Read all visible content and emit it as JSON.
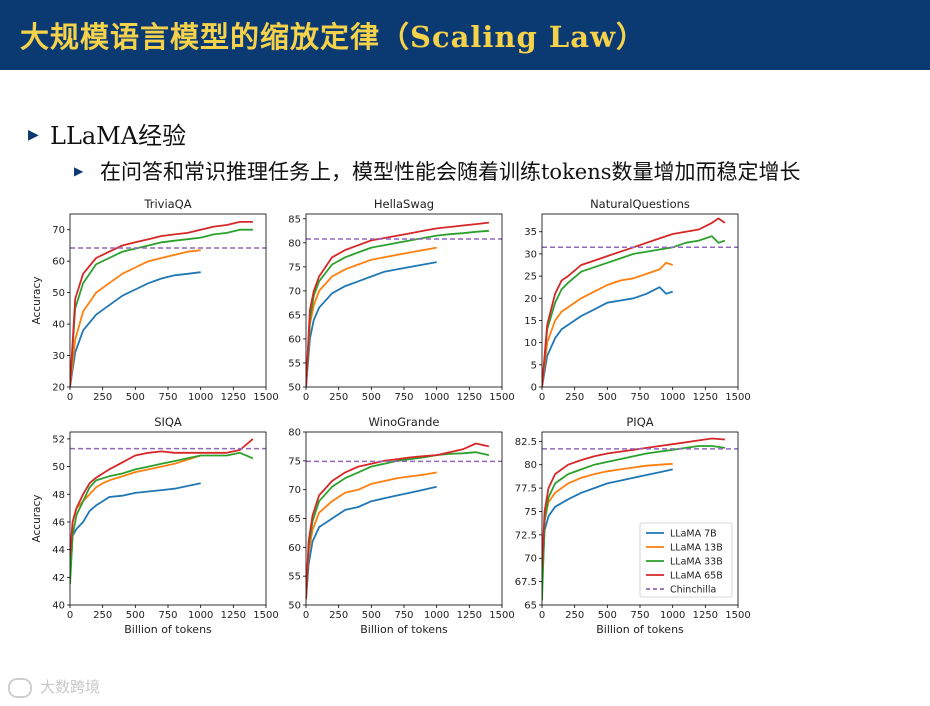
{
  "header": {
    "title": "大规模语言模型的缩放定律（Scaling Law）",
    "colors": {
      "background": "#0b3a72",
      "title": "#f5d24a"
    }
  },
  "bullets": {
    "level1": "LLaMA经验",
    "level2": "在问答和常识推理任务上，模型性能会随着训练tokens数量增加而稳定增长"
  },
  "watermark": "大数跨境",
  "chart_data": [
    {
      "type": "line",
      "title": "TriviaQA",
      "ylabel": "Accuracy",
      "xlabel": "",
      "xlim": [
        0,
        1500
      ],
      "ylim": [
        20,
        75
      ],
      "xticks": [
        0,
        250,
        500,
        750,
        1000,
        1250,
        1500
      ],
      "yticks": [
        20,
        30,
        40,
        50,
        60,
        70
      ],
      "hline": {
        "name": "Chinchilla",
        "y": 64.2
      },
      "series": [
        {
          "name": "LLaMA 7B",
          "x": [
            0,
            40,
            100,
            200,
            300,
            400,
            500,
            600,
            700,
            800,
            900,
            1000
          ],
          "y": [
            20,
            31,
            38,
            43,
            46,
            49,
            51,
            53,
            54.5,
            55.5,
            56,
            56.5
          ]
        },
        {
          "name": "LLaMA 13B",
          "x": [
            0,
            40,
            100,
            200,
            300,
            400,
            500,
            600,
            700,
            800,
            900,
            1000
          ],
          "y": [
            20,
            35,
            44,
            50,
            53,
            56,
            58,
            60,
            61,
            62,
            63,
            63.5
          ]
        },
        {
          "name": "LLaMA 33B",
          "x": [
            0,
            40,
            100,
            200,
            300,
            400,
            500,
            600,
            700,
            800,
            900,
            1000,
            1100,
            1200,
            1300,
            1400
          ],
          "y": [
            20,
            45,
            53,
            59,
            61,
            63,
            64,
            65,
            66,
            66.5,
            67,
            67.5,
            68.5,
            69,
            70,
            70
          ]
        },
        {
          "name": "LLaMA 65B",
          "x": [
            0,
            40,
            100,
            200,
            300,
            400,
            500,
            600,
            700,
            800,
            900,
            1000,
            1100,
            1200,
            1300,
            1400
          ],
          "y": [
            20,
            48,
            56,
            61,
            63,
            65,
            66,
            67,
            68,
            68.5,
            69,
            70,
            71,
            71.5,
            72.5,
            72.5
          ]
        }
      ]
    },
    {
      "type": "line",
      "title": "HellaSwag",
      "ylabel": "",
      "xlabel": "",
      "xlim": [
        0,
        1500
      ],
      "ylim": [
        50,
        86
      ],
      "xticks": [
        0,
        250,
        500,
        750,
        1000,
        1250,
        1500
      ],
      "yticks": [
        50,
        55,
        60,
        65,
        70,
        75,
        80,
        85
      ],
      "hline": {
        "name": "Chinchilla",
        "y": 80.8
      },
      "series": [
        {
          "name": "LLaMA 7B",
          "x": [
            0,
            30,
            60,
            100,
            200,
            300,
            400,
            500,
            600,
            700,
            800,
            900,
            1000
          ],
          "y": [
            50,
            60,
            64,
            66.5,
            69.5,
            71,
            72,
            73,
            74,
            74.5,
            75,
            75.5,
            76
          ]
        },
        {
          "name": "LLaMA 13B",
          "x": [
            0,
            30,
            60,
            100,
            200,
            300,
            400,
            500,
            600,
            700,
            800,
            900,
            1000
          ],
          "y": [
            50,
            63,
            67,
            70,
            73,
            74.5,
            75.5,
            76.5,
            77,
            77.5,
            78,
            78.5,
            79
          ]
        },
        {
          "name": "LLaMA 33B",
          "x": [
            0,
            30,
            60,
            100,
            200,
            300,
            400,
            500,
            600,
            700,
            800,
            900,
            1000,
            1100,
            1200,
            1300,
            1400
          ],
          "y": [
            50,
            64,
            69,
            72,
            75.5,
            77,
            78,
            79,
            79.5,
            80,
            80.5,
            81,
            81.5,
            81.8,
            82,
            82.3,
            82.5
          ]
        },
        {
          "name": "LLaMA 65B",
          "x": [
            0,
            30,
            60,
            100,
            200,
            300,
            400,
            500,
            600,
            700,
            800,
            900,
            1000,
            1100,
            1200,
            1300,
            1400
          ],
          "y": [
            50,
            66,
            70,
            73,
            77,
            78.5,
            79.5,
            80.5,
            81,
            81.5,
            82,
            82.5,
            83,
            83.3,
            83.6,
            83.9,
            84.2
          ]
        }
      ]
    },
    {
      "type": "line",
      "title": "NaturalQuestions",
      "ylabel": "",
      "xlabel": "",
      "xlim": [
        0,
        1500
      ],
      "ylim": [
        0,
        39
      ],
      "xticks": [
        0,
        250,
        500,
        750,
        1000,
        1250,
        1500
      ],
      "yticks": [
        0,
        5,
        10,
        15,
        20,
        25,
        30,
        35
      ],
      "hline": {
        "name": "Chinchilla",
        "y": 31.5
      },
      "series": [
        {
          "name": "LLaMA 7B",
          "x": [
            0,
            40,
            100,
            150,
            200,
            300,
            400,
            500,
            600,
            700,
            800,
            900,
            950,
            1000
          ],
          "y": [
            0,
            7,
            11,
            13,
            14,
            16,
            17.5,
            19,
            19.5,
            20,
            21,
            22.5,
            21,
            21.5
          ]
        },
        {
          "name": "LLaMA 13B",
          "x": [
            0,
            40,
            100,
            150,
            200,
            300,
            400,
            500,
            600,
            700,
            800,
            900,
            950,
            1000
          ],
          "y": [
            0,
            10,
            15,
            17,
            18,
            20,
            21.5,
            23,
            24,
            24.5,
            25.5,
            26.5,
            28,
            27.5
          ]
        },
        {
          "name": "LLaMA 33B",
          "x": [
            0,
            40,
            100,
            150,
            200,
            300,
            400,
            500,
            600,
            700,
            800,
            900,
            1000,
            1100,
            1200,
            1300,
            1350,
            1400
          ],
          "y": [
            0,
            13,
            19,
            22,
            23.5,
            26,
            27,
            28,
            29,
            30,
            30.5,
            31,
            31.5,
            32.5,
            33,
            34,
            32.5,
            33
          ]
        },
        {
          "name": "LLaMA 65B",
          "x": [
            0,
            40,
            100,
            150,
            200,
            300,
            400,
            500,
            600,
            700,
            800,
            900,
            1000,
            1100,
            1200,
            1300,
            1350,
            1400
          ],
          "y": [
            0,
            14,
            21,
            24,
            25,
            27.5,
            28.5,
            29.5,
            30.5,
            31.5,
            32.5,
            33.5,
            34.5,
            35,
            35.5,
            37,
            38,
            37
          ]
        }
      ]
    },
    {
      "type": "line",
      "title": "SIQA",
      "ylabel": "Accuracy",
      "xlabel": "Billion of tokens",
      "xlim": [
        0,
        1500
      ],
      "ylim": [
        40,
        52.5
      ],
      "xticks": [
        0,
        250,
        500,
        750,
        1000,
        1250,
        1500
      ],
      "yticks": [
        40,
        42,
        44,
        46,
        48,
        50,
        52
      ],
      "hline": {
        "name": "Chinchilla",
        "y": 51.3
      },
      "series": [
        {
          "name": "LLaMA 7B",
          "x": [
            0,
            20,
            50,
            100,
            150,
            200,
            250,
            300,
            400,
            500,
            600,
            700,
            800,
            900,
            1000
          ],
          "y": [
            42,
            45,
            45.5,
            46,
            46.8,
            47.2,
            47.5,
            47.8,
            47.9,
            48.1,
            48.2,
            48.3,
            48.4,
            48.6,
            48.8
          ]
        },
        {
          "name": "LLaMA 13B",
          "x": [
            0,
            20,
            50,
            100,
            150,
            200,
            250,
            300,
            400,
            500,
            600,
            700,
            800,
            900,
            1000
          ],
          "y": [
            42,
            46,
            47,
            47.5,
            48,
            48.5,
            48.8,
            49,
            49.3,
            49.6,
            49.8,
            50,
            50.2,
            50.5,
            50.8
          ]
        },
        {
          "name": "LLaMA 33B",
          "x": [
            0,
            20,
            50,
            100,
            150,
            200,
            300,
            400,
            500,
            600,
            700,
            800,
            900,
            1000,
            1100,
            1200,
            1300,
            1400
          ],
          "y": [
            41.5,
            45,
            46.5,
            47.5,
            48.5,
            49,
            49.3,
            49.5,
            49.8,
            50,
            50.2,
            50.4,
            50.6,
            50.8,
            50.8,
            50.8,
            51,
            50.6
          ]
        },
        {
          "name": "LLaMA 65B",
          "x": [
            0,
            20,
            50,
            100,
            150,
            200,
            300,
            400,
            500,
            600,
            700,
            800,
            900,
            1000,
            1100,
            1200,
            1300,
            1400
          ],
          "y": [
            43.5,
            46,
            47,
            48,
            48.8,
            49.2,
            49.8,
            50.3,
            50.8,
            51,
            51.1,
            51,
            51,
            51,
            51,
            51,
            51.2,
            52
          ]
        }
      ]
    },
    {
      "type": "line",
      "title": "WinoGrande",
      "ylabel": "",
      "xlabel": "Billion of tokens",
      "xlim": [
        0,
        1500
      ],
      "ylim": [
        50,
        80
      ],
      "xticks": [
        0,
        250,
        500,
        750,
        1000,
        1250,
        1500
      ],
      "yticks": [
        50,
        55,
        60,
        65,
        70,
        75,
        80
      ],
      "hline": {
        "name": "Chinchilla",
        "y": 74.9
      },
      "series": [
        {
          "name": "LLaMA 7B",
          "x": [
            0,
            20,
            50,
            100,
            200,
            300,
            400,
            500,
            600,
            700,
            800,
            900,
            1000
          ],
          "y": [
            51,
            57,
            61,
            63.5,
            65,
            66.5,
            67,
            68,
            68.5,
            69,
            69.5,
            70,
            70.5
          ]
        },
        {
          "name": "LLaMA 13B",
          "x": [
            0,
            20,
            50,
            100,
            200,
            300,
            400,
            500,
            600,
            700,
            800,
            900,
            1000
          ],
          "y": [
            51,
            59,
            63,
            66,
            68,
            69.5,
            70,
            71,
            71.5,
            72,
            72.3,
            72.6,
            73
          ]
        },
        {
          "name": "LLaMA 33B",
          "x": [
            0,
            20,
            50,
            100,
            200,
            300,
            400,
            500,
            600,
            700,
            800,
            900,
            1000,
            1100,
            1200,
            1300,
            1400
          ],
          "y": [
            51,
            60,
            64.5,
            68,
            70.5,
            72,
            73,
            74,
            74.5,
            75,
            75.3,
            75.6,
            76,
            76.2,
            76.3,
            76.5,
            76
          ]
        },
        {
          "name": "LLaMA 65B",
          "x": [
            0,
            20,
            50,
            100,
            200,
            300,
            400,
            500,
            600,
            700,
            800,
            900,
            1000,
            1100,
            1200,
            1300,
            1400
          ],
          "y": [
            51,
            61,
            65.5,
            69,
            71.5,
            73,
            74,
            74.5,
            75,
            75.3,
            75.6,
            75.8,
            76,
            76.5,
            77,
            78,
            77.5
          ]
        }
      ]
    },
    {
      "type": "line",
      "title": "PIQA",
      "ylabel": "",
      "xlabel": "Billion of tokens",
      "xlim": [
        0,
        1500
      ],
      "ylim": [
        65,
        83.5
      ],
      "xticks": [
        0,
        250,
        500,
        750,
        1000,
        1250,
        1500
      ],
      "yticks": [
        65,
        67.5,
        70,
        72.5,
        75,
        77.5,
        80,
        82.5
      ],
      "hline": {
        "name": "Chinchilla",
        "y": 81.7
      },
      "legend": "lower-right",
      "series": [
        {
          "name": "LLaMA 7B",
          "color": "#1f77b4",
          "x": [
            0,
            20,
            50,
            100,
            200,
            300,
            400,
            500,
            600,
            700,
            800,
            900,
            1000
          ],
          "y": [
            67,
            73,
            74.5,
            75.5,
            76.3,
            77,
            77.5,
            78,
            78.3,
            78.6,
            78.9,
            79.2,
            79.5
          ]
        },
        {
          "name": "LLaMA 13B",
          "color": "#ff7f0e",
          "x": [
            0,
            20,
            50,
            100,
            200,
            300,
            400,
            500,
            600,
            700,
            800,
            900,
            1000
          ],
          "y": [
            68,
            74,
            76,
            77,
            78,
            78.6,
            79,
            79.3,
            79.5,
            79.7,
            79.9,
            80,
            80.1
          ]
        },
        {
          "name": "LLaMA 33B",
          "color": "#2ca02c",
          "x": [
            0,
            20,
            50,
            100,
            200,
            300,
            400,
            500,
            600,
            700,
            800,
            900,
            1000,
            1100,
            1200,
            1300,
            1400
          ],
          "y": [
            65.5,
            74,
            76.5,
            78,
            79,
            79.5,
            80,
            80.3,
            80.6,
            80.9,
            81.2,
            81.4,
            81.6,
            81.8,
            82,
            82,
            81.8
          ]
        },
        {
          "name": "LLaMA 65B",
          "color": "#d62728",
          "x": [
            0,
            20,
            50,
            100,
            200,
            300,
            400,
            500,
            600,
            700,
            800,
            900,
            1000,
            1100,
            1200,
            1300,
            1400
          ],
          "y": [
            69,
            75,
            77.5,
            79,
            80,
            80.5,
            80.9,
            81.2,
            81.4,
            81.6,
            81.8,
            82,
            82.2,
            82.4,
            82.6,
            82.8,
            82.7
          ]
        },
        {
          "name": "Chinchilla",
          "color": "#9467bd",
          "dashed": true
        }
      ]
    }
  ],
  "series_colors": {
    "LLaMA 7B": "#1f77b4",
    "LLaMA 13B": "#ff7f0e",
    "LLaMA 33B": "#2ca02c",
    "LLaMA 65B": "#d62728",
    "Chinchilla": "#9467bd"
  }
}
